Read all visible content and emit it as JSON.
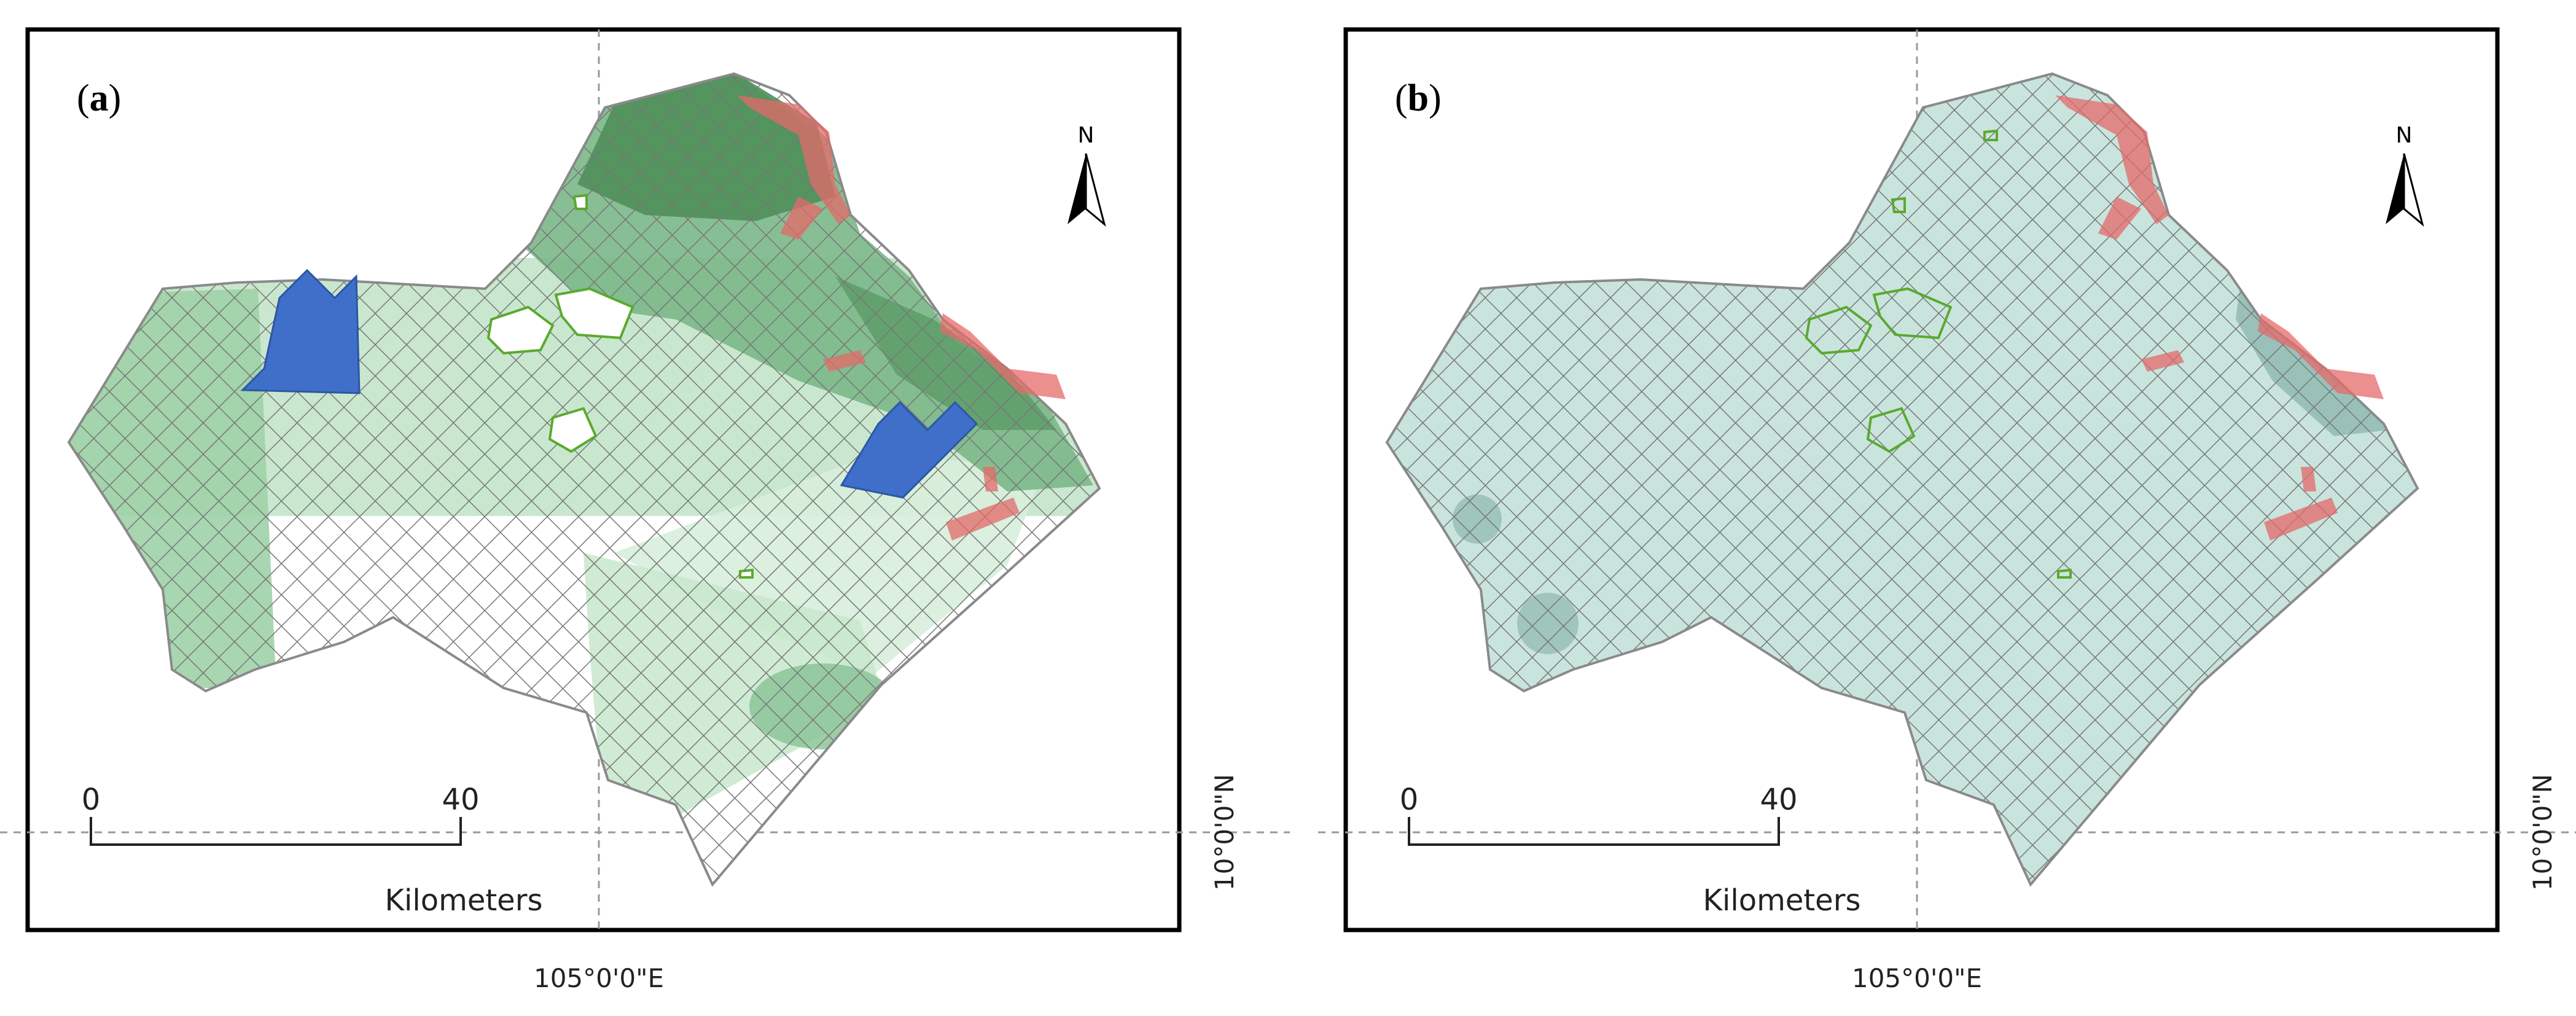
{
  "panels": [
    {
      "label_open": "(",
      "label_letter": "a",
      "label_close": ")"
    },
    {
      "label_open": "(",
      "label_letter": "b",
      "label_close": ")"
    }
  ],
  "north_label": "N",
  "scale_bar": {
    "start": "0",
    "end": "40",
    "unit": "Kilometers"
  },
  "graticule": {
    "longitude": "105°0'0\"E",
    "latitude": "10°0'0\"N"
  },
  "colors": {
    "frame": "#000000",
    "boundary": "#8a8a8a",
    "hatch": "#777777",
    "green_dark": "#4f8f58",
    "green_light": "#a9d8b2",
    "teal_fill": "#c9e4dd",
    "red_edge": "#e46a6a",
    "arrow_blue": "#3f6fc9",
    "urban_outline": "#5aaa2e"
  },
  "icons": [
    "north-arrow-icon",
    "arrow-blue-icon"
  ]
}
